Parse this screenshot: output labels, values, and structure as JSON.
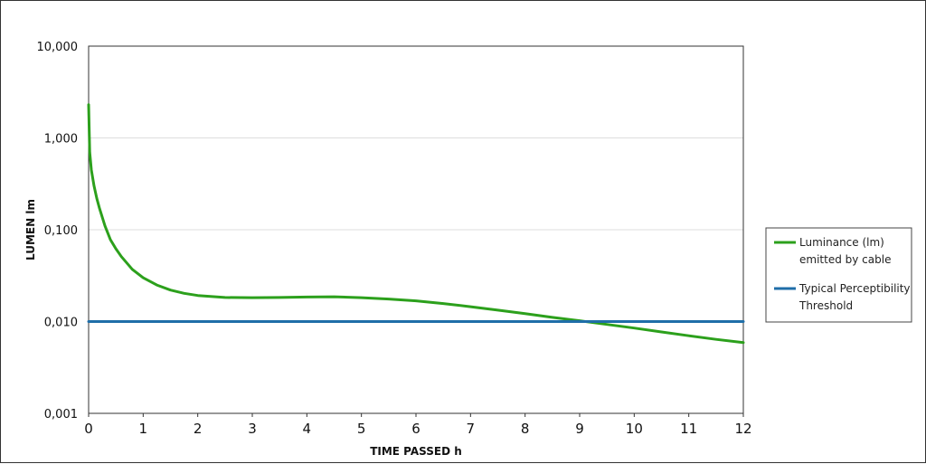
{
  "chart_data": {
    "type": "line",
    "title": "",
    "xlabel": "TIME PASSED h",
    "ylabel": "LUMEN lm",
    "xlim": [
      0,
      12
    ],
    "ylim": [
      0.001,
      10
    ],
    "y_scale": "log",
    "grid": true,
    "legend_position": "right",
    "x_ticks": [
      "0",
      "1",
      "2",
      "3",
      "4",
      "5",
      "6",
      "7",
      "8",
      "9",
      "10",
      "11",
      "12"
    ],
    "y_ticks": [
      {
        "value": 10,
        "label": "10,000"
      },
      {
        "value": 1,
        "label": "1,000"
      },
      {
        "value": 0.1,
        "label": "0,100"
      },
      {
        "value": 0.01,
        "label": "0,010"
      },
      {
        "value": 0.001,
        "label": "0,001"
      }
    ],
    "series": [
      {
        "name": "Luminance (lm)",
        "name_line2": "emitted by cable",
        "color": "#2ca01c",
        "x": [
          0.0,
          0.02,
          0.05,
          0.1,
          0.15,
          0.2,
          0.3,
          0.4,
          0.5,
          0.6,
          0.8,
          1.0,
          1.25,
          1.5,
          1.75,
          2.0,
          2.5,
          3.0,
          3.5,
          4.0,
          4.5,
          5.0,
          5.5,
          6.0,
          6.5,
          7.0,
          7.5,
          8.0,
          8.5,
          9.0,
          9.5,
          10.0,
          10.5,
          11.0,
          11.5,
          12.0
        ],
        "y": [
          2.3,
          0.7,
          0.45,
          0.3,
          0.22,
          0.17,
          0.11,
          0.078,
          0.062,
          0.051,
          0.037,
          0.03,
          0.025,
          0.022,
          0.0203,
          0.0192,
          0.0183,
          0.0182,
          0.0183,
          0.0185,
          0.0186,
          0.0182,
          0.0176,
          0.0168,
          0.0157,
          0.0145,
          0.0133,
          0.0122,
          0.0111,
          0.0102,
          0.0093,
          0.0085,
          0.0077,
          0.007,
          0.0064,
          0.0059
        ]
      },
      {
        "name": "Typical Perceptibility",
        "name_line2": "Threshold",
        "color": "#1f6ea8",
        "x": [
          0,
          12
        ],
        "y": [
          0.01,
          0.01
        ]
      }
    ]
  }
}
